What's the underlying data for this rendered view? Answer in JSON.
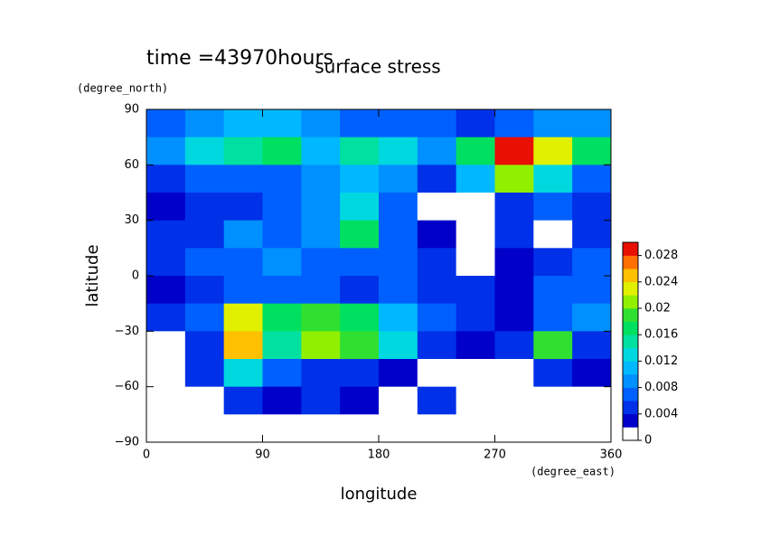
{
  "chart_data": {
    "type": "contour",
    "title": "time =43970hours",
    "subtitle": "surface stress",
    "x_label": "longitude",
    "x_unit": "(degree_east)",
    "y_label": "latitude",
    "y_unit": "(degree_north)",
    "xlim": [
      0,
      360
    ],
    "xticks": [
      0,
      90,
      180,
      270,
      360
    ],
    "ylim": [
      -90,
      90
    ],
    "yticks": [
      {
        "value": -90,
        "label": "−90"
      },
      {
        "value": -60,
        "label": "−60"
      },
      {
        "value": -30,
        "label": "−30"
      },
      0,
      30,
      60,
      90
    ],
    "zlim": [
      0,
      0.03
    ],
    "zticks": [
      0,
      0.004,
      0.008,
      0.012,
      0.016,
      0.02,
      0.024,
      0.028
    ],
    "colors": [
      "#ffffff",
      "#0000c8",
      "#0030e8",
      "#0060ff",
      "#0090ff",
      "#00b8ff",
      "#00d8e0",
      "#00e0a0",
      "#00e060",
      "#30e030",
      "#90f000",
      "#e0f000",
      "#ffc000",
      "#ff7000",
      "#e81000"
    ],
    "x": [
      15,
      45,
      75,
      105,
      135,
      165,
      195,
      225,
      255,
      285,
      315,
      345
    ],
    "y": [
      82.5,
      67.5,
      52.5,
      37.5,
      22.5,
      7.5,
      -7.5,
      -22.5,
      -37.5,
      -52.5,
      -67.5,
      -82.5
    ],
    "z": [
      [
        0.006,
        0.008,
        0.01,
        0.01,
        0.008,
        0.006,
        0.006,
        0.006,
        0.004,
        0.006,
        0.008,
        0.008
      ],
      [
        0.008,
        0.012,
        0.014,
        0.016,
        0.01,
        0.014,
        0.012,
        0.008,
        0.016,
        0.03,
        0.022,
        0.016
      ],
      [
        0.004,
        0.006,
        0.006,
        0.006,
        0.008,
        0.01,
        0.008,
        0.004,
        0.01,
        0.02,
        0.012,
        0.006
      ],
      [
        0.003,
        0.005,
        0.004,
        0.006,
        0.008,
        0.012,
        0.006,
        0,
        0,
        0.004,
        0.006,
        0.004
      ],
      [
        0.004,
        0.005,
        0.008,
        0.006,
        0.008,
        0.016,
        0.006,
        0.003,
        0,
        0.004,
        0,
        0.004
      ],
      [
        0.004,
        0.006,
        0.006,
        0.008,
        0.006,
        0.006,
        0.006,
        0.004,
        0,
        0.003,
        0.005,
        0.006
      ],
      [
        0.002,
        0.004,
        0.006,
        0.006,
        0.006,
        0.005,
        0.006,
        0.004,
        0.004,
        0.003,
        0.006,
        0.006
      ],
      [
        0.004,
        0.006,
        0.022,
        0.016,
        0.018,
        0.016,
        0.01,
        0.006,
        0.004,
        0.003,
        0.006,
        0.008
      ],
      [
        0,
        0.005,
        0.024,
        0.014,
        0.02,
        0.018,
        0.012,
        0.005,
        0.003,
        0.004,
        0.018,
        0.005
      ],
      [
        0,
        0.004,
        0.012,
        0.006,
        0.004,
        0.004,
        0.003,
        0,
        0,
        0,
        0.004,
        0.003
      ],
      [
        0,
        0,
        0.004,
        0.002,
        0.004,
        0.003,
        0,
        0.004,
        0,
        0,
        0,
        0
      ],
      [
        0,
        0,
        0,
        0,
        0,
        0,
        0,
        0,
        0,
        0,
        0,
        0
      ]
    ]
  }
}
